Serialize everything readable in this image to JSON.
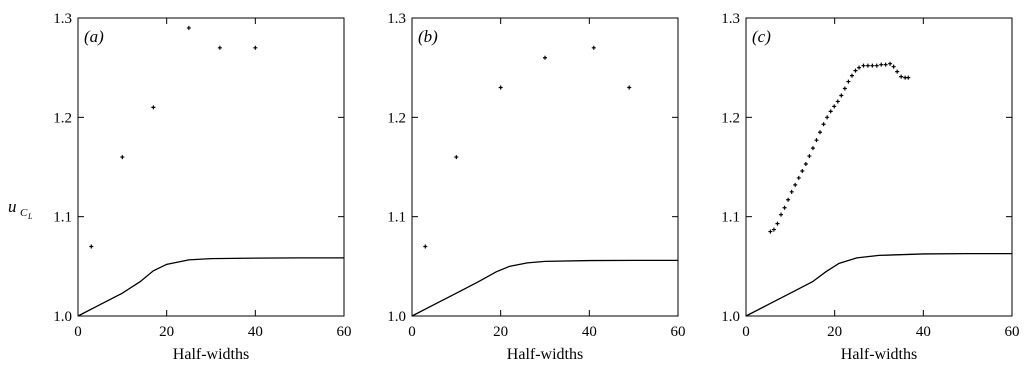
{
  "chart_data": {
    "ylabel": {
      "base": "u",
      "sub": "C",
      "subsub": "L"
    },
    "panels": [
      {
        "type": "scatter",
        "label": "(a)",
        "xlabel": "Half-widths",
        "xlim": [
          0,
          60
        ],
        "ylim": [
          1.0,
          1.3
        ],
        "xticks": [
          0,
          20,
          40,
          60
        ],
        "yticks": [
          1.0,
          1.1,
          1.2,
          1.3
        ],
        "points": [
          [
            3,
            1.07
          ],
          [
            10,
            1.16
          ],
          [
            17,
            1.21
          ],
          [
            25,
            1.29
          ],
          [
            32,
            1.27
          ],
          [
            40,
            1.27
          ]
        ],
        "curve": [
          [
            0,
            1.0
          ],
          [
            5,
            1.0115
          ],
          [
            10,
            1.023
          ],
          [
            14,
            1.0345
          ],
          [
            17,
            1.0455
          ],
          [
            20,
            1.052
          ],
          [
            25,
            1.0565
          ],
          [
            30,
            1.0578
          ],
          [
            40,
            1.0583
          ],
          [
            50,
            1.0585
          ],
          [
            60,
            1.0585
          ]
        ]
      },
      {
        "type": "scatter",
        "label": "(b)",
        "xlabel": "Half-widths",
        "xlim": [
          0,
          60
        ],
        "ylim": [
          1.0,
          1.3
        ],
        "xticks": [
          0,
          20,
          40,
          60
        ],
        "yticks": [
          1.0,
          1.1,
          1.2,
          1.3
        ],
        "points": [
          [
            3,
            1.07
          ],
          [
            10,
            1.16
          ],
          [
            20,
            1.23
          ],
          [
            30,
            1.26
          ],
          [
            41,
            1.27
          ],
          [
            49,
            1.23
          ]
        ],
        "curve": [
          [
            0,
            1.0
          ],
          [
            5,
            1.0115
          ],
          [
            10,
            1.023
          ],
          [
            15,
            1.0345
          ],
          [
            19,
            1.0445
          ],
          [
            22,
            1.05
          ],
          [
            26,
            1.0535
          ],
          [
            30,
            1.055
          ],
          [
            40,
            1.0558
          ],
          [
            50,
            1.056
          ],
          [
            60,
            1.056
          ]
        ]
      },
      {
        "type": "scatter",
        "label": "(c)",
        "xlabel": "Half-widths",
        "xlim": [
          0,
          60
        ],
        "ylim": [
          1.0,
          1.3
        ],
        "xticks": [
          0,
          20,
          40,
          60
        ],
        "yticks": [
          1.0,
          1.1,
          1.2,
          1.3
        ],
        "points": [
          [
            5.5,
            1.085
          ],
          [
            6.3,
            1.087
          ],
          [
            7.1,
            1.093
          ],
          [
            7.9,
            1.102
          ],
          [
            8.7,
            1.109
          ],
          [
            9.5,
            1.117
          ],
          [
            10.3,
            1.125
          ],
          [
            11.1,
            1.132
          ],
          [
            11.9,
            1.139
          ],
          [
            12.7,
            1.146
          ],
          [
            13.5,
            1.153
          ],
          [
            14.3,
            1.161
          ],
          [
            15.1,
            1.169
          ],
          [
            15.9,
            1.177
          ],
          [
            16.7,
            1.185
          ],
          [
            17.5,
            1.193
          ],
          [
            18.3,
            1.2
          ],
          [
            19.1,
            1.206
          ],
          [
            19.9,
            1.211
          ],
          [
            20.7,
            1.216
          ],
          [
            21.5,
            1.222
          ],
          [
            22.3,
            1.229
          ],
          [
            23.1,
            1.236
          ],
          [
            23.9,
            1.242
          ],
          [
            24.7,
            1.247
          ],
          [
            25.5,
            1.25
          ],
          [
            26.5,
            1.252
          ],
          [
            27.5,
            1.252
          ],
          [
            28.5,
            1.252
          ],
          [
            29.5,
            1.252
          ],
          [
            30.5,
            1.253
          ],
          [
            31.5,
            1.253
          ],
          [
            32.5,
            1.254
          ],
          [
            33.3,
            1.251
          ],
          [
            34.1,
            1.246
          ],
          [
            35,
            1.241
          ],
          [
            35.9,
            1.24
          ],
          [
            36.6,
            1.24
          ]
        ],
        "curve": [
          [
            0,
            1.0
          ],
          [
            5,
            1.0115
          ],
          [
            10,
            1.023
          ],
          [
            15,
            1.0345
          ],
          [
            18,
            1.0445
          ],
          [
            21,
            1.053
          ],
          [
            25,
            1.0585
          ],
          [
            30,
            1.061
          ],
          [
            40,
            1.0625
          ],
          [
            50,
            1.0628
          ],
          [
            60,
            1.0628
          ]
        ]
      }
    ]
  }
}
